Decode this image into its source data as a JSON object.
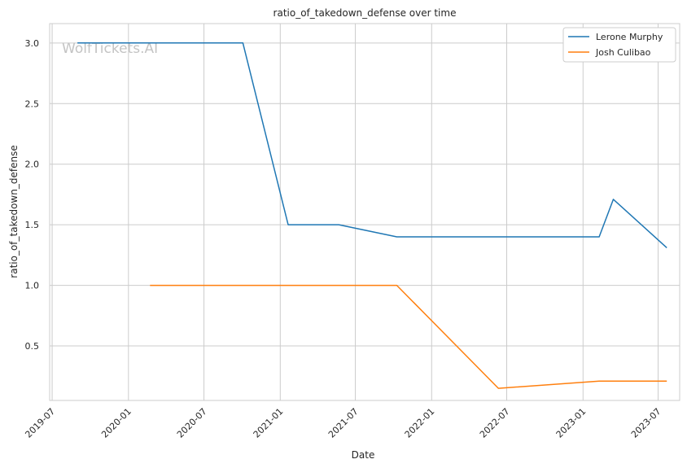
{
  "chart_data": {
    "type": "line",
    "title": "ratio_of_takedown_defense over time",
    "xlabel": "Date",
    "ylabel": "ratio_of_takedown_defense",
    "watermark": "WolfTickets.AI",
    "x_ticks": [
      "2019-07",
      "2020-01",
      "2020-07",
      "2021-01",
      "2021-07",
      "2022-01",
      "2022-07",
      "2023-01",
      "2023-07"
    ],
    "y_ticks": [
      "0.5",
      "1.0",
      "1.5",
      "2.0",
      "2.5",
      "3.0"
    ],
    "xlim": [
      "2019-06-25",
      "2023-08-22"
    ],
    "ylim": [
      0.05,
      3.16
    ],
    "grid": true,
    "legend_position": "top-right",
    "series": [
      {
        "name": "Lerone Murphy",
        "color": "#1f77b4",
        "x": [
          "2019-08-31",
          "2020-10-03",
          "2021-01-20",
          "2021-05-22",
          "2021-10-09",
          "2023-02-09",
          "2023-03-15",
          "2023-07-22"
        ],
        "y": [
          3.0,
          3.0,
          1.5,
          1.5,
          1.4,
          1.4,
          1.71,
          1.31
        ]
      },
      {
        "name": "Josh Culibao",
        "color": "#ff7f0e",
        "x": [
          "2020-02-22",
          "2021-10-09",
          "2022-06-11",
          "2023-02-09",
          "2023-07-22"
        ],
        "y": [
          1.0,
          1.0,
          0.15,
          0.21,
          0.21
        ]
      }
    ]
  }
}
